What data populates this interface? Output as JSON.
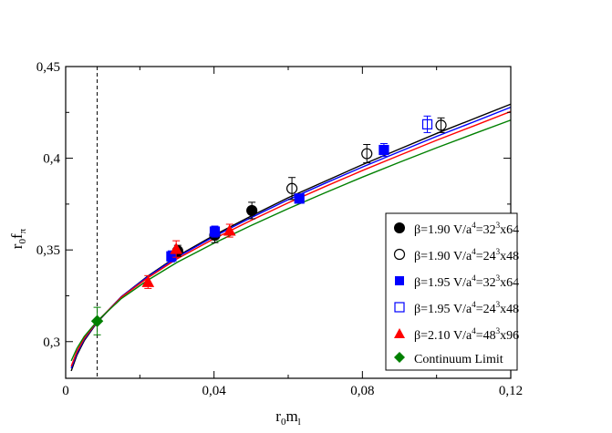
{
  "chart_data": {
    "type": "scatter",
    "title": "",
    "xlabel": {
      "main": "r",
      "sub0": "0",
      "mid": "m",
      "sub1": "l"
    },
    "ylabel": {
      "main": "r",
      "sub0": "0",
      "mid": "f",
      "sub1": "π"
    },
    "xlim": [
      0,
      0.12
    ],
    "ylim": [
      0.28,
      0.45
    ],
    "x_ticks": [
      {
        "value": 0,
        "label": "0"
      },
      {
        "value": 0.04,
        "label": "0,04"
      },
      {
        "value": 0.08,
        "label": "0,08"
      },
      {
        "value": 0.12,
        "label": "0,12"
      }
    ],
    "y_ticks": [
      {
        "value": 0.3,
        "label": "0,3"
      },
      {
        "value": 0.35,
        "label": "0,35"
      },
      {
        "value": 0.4,
        "label": "0,4"
      },
      {
        "value": 0.45,
        "label": "0,45"
      }
    ],
    "physical_point_line": 0.0085,
    "legend_position": "bottom-right",
    "series": [
      {
        "name": "β=1.90 V/a⁴=32³x64",
        "legend": {
          "beta": "β=1.90",
          "v": "V/a",
          "p1": "4",
          "eq": "=32",
          "p2": "3",
          "dims": "x64"
        },
        "marker": "circle",
        "filled": true,
        "color": "#000000",
        "points": [
          {
            "x": 0.0302,
            "y": 0.3495,
            "err": 0.003
          },
          {
            "x": 0.0402,
            "y": 0.358,
            "err": 0.004
          },
          {
            "x": 0.0502,
            "y": 0.3715,
            "err": 0.0045
          }
        ]
      },
      {
        "name": "β=1.90 V/a⁴=24³x48",
        "legend": {
          "beta": "β=1.90",
          "v": "V/a",
          "p1": "4",
          "eq": "=24",
          "p2": "3",
          "dims": "x48"
        },
        "marker": "circle",
        "filled": false,
        "color": "#000000",
        "points": [
          {
            "x": 0.061,
            "y": 0.3835,
            "err": 0.006
          },
          {
            "x": 0.0812,
            "y": 0.4025,
            "err": 0.005
          },
          {
            "x": 0.1012,
            "y": 0.418,
            "err": 0.004
          }
        ]
      },
      {
        "name": "β=1.95 V/a⁴=32³x64",
        "legend": {
          "beta": "β=1.95",
          "v": "V/a",
          "p1": "4",
          "eq": "=32",
          "p2": "3",
          "dims": "x64"
        },
        "marker": "square",
        "filled": true,
        "color": "#0000ff",
        "points": [
          {
            "x": 0.0285,
            "y": 0.3465,
            "err": 0.003
          },
          {
            "x": 0.0402,
            "y": 0.36,
            "err": 0.003
          },
          {
            "x": 0.063,
            "y": 0.378,
            "err": 0.0025
          },
          {
            "x": 0.0858,
            "y": 0.4045,
            "err": 0.0035
          }
        ]
      },
      {
        "name": "β=1.95 V/a⁴=24³x48",
        "legend": {
          "beta": "β=1.95",
          "v": "V/a",
          "p1": "4",
          "eq": "=24",
          "p2": "3",
          "dims": "x48"
        },
        "marker": "square",
        "filled": false,
        "color": "#0000ff",
        "points": [
          {
            "x": 0.0975,
            "y": 0.4185,
            "err": 0.0045
          }
        ]
      },
      {
        "name": "β=2.10 V/a⁴=48³x96",
        "legend": {
          "beta": "β=2.10",
          "v": "V/a",
          "p1": "4",
          "eq": "=48",
          "p2": "3",
          "dims": "x96"
        },
        "marker": "triangle",
        "filled": true,
        "color": "#ff0000",
        "points": [
          {
            "x": 0.0222,
            "y": 0.3325,
            "err": 0.0035
          },
          {
            "x": 0.0298,
            "y": 0.3505,
            "err": 0.0045
          },
          {
            "x": 0.0442,
            "y": 0.3605,
            "err": 0.0035
          }
        ]
      },
      {
        "name": "Continuum Limit",
        "legend": {
          "text": "Continuum Limit"
        },
        "marker": "diamond",
        "filled": true,
        "color": "#008000",
        "points": [
          {
            "x": 0.0085,
            "y": 0.3112,
            "err": 0.0075
          }
        ]
      }
    ],
    "fit_curves": [
      {
        "color": "#000000",
        "x": [
          0.0015,
          0.003,
          0.005,
          0.0085,
          0.015,
          0.022,
          0.03,
          0.04,
          0.05,
          0.06,
          0.07,
          0.08,
          0.09,
          0.1,
          0.11,
          0.12
        ],
        "y": [
          0.284,
          0.2925,
          0.3005,
          0.3105,
          0.3245,
          0.3355,
          0.3465,
          0.358,
          0.3685,
          0.3785,
          0.3875,
          0.3965,
          0.405,
          0.4135,
          0.4215,
          0.4295
        ]
      },
      {
        "color": "#0000ff",
        "x": [
          0.0015,
          0.003,
          0.005,
          0.0085,
          0.015,
          0.022,
          0.03,
          0.04,
          0.05,
          0.06,
          0.07,
          0.08,
          0.09,
          0.1,
          0.11,
          0.12
        ],
        "y": [
          0.2855,
          0.2935,
          0.3012,
          0.3108,
          0.3245,
          0.3352,
          0.346,
          0.3573,
          0.3676,
          0.3774,
          0.3864,
          0.3952,
          0.4036,
          0.4119,
          0.4198,
          0.4278
        ]
      },
      {
        "color": "#ff0000",
        "x": [
          0.0015,
          0.003,
          0.005,
          0.0085,
          0.015,
          0.022,
          0.03,
          0.04,
          0.05,
          0.06,
          0.07,
          0.08,
          0.09,
          0.1,
          0.11,
          0.12
        ],
        "y": [
          0.2865,
          0.2945,
          0.3018,
          0.311,
          0.3242,
          0.3346,
          0.3451,
          0.3561,
          0.3661,
          0.3757,
          0.3846,
          0.3933,
          0.4016,
          0.4098,
          0.4176,
          0.4255
        ]
      },
      {
        "color": "#008000",
        "x": [
          0.0015,
          0.003,
          0.005,
          0.0085,
          0.015,
          0.022,
          0.03,
          0.04,
          0.05,
          0.06,
          0.07,
          0.08,
          0.09,
          0.1,
          0.11,
          0.12
        ],
        "y": [
          0.2895,
          0.2962,
          0.3028,
          0.3112,
          0.3235,
          0.3333,
          0.3432,
          0.3537,
          0.3633,
          0.3725,
          0.3812,
          0.3897,
          0.3978,
          0.4057,
          0.4133,
          0.4208
        ]
      }
    ]
  }
}
